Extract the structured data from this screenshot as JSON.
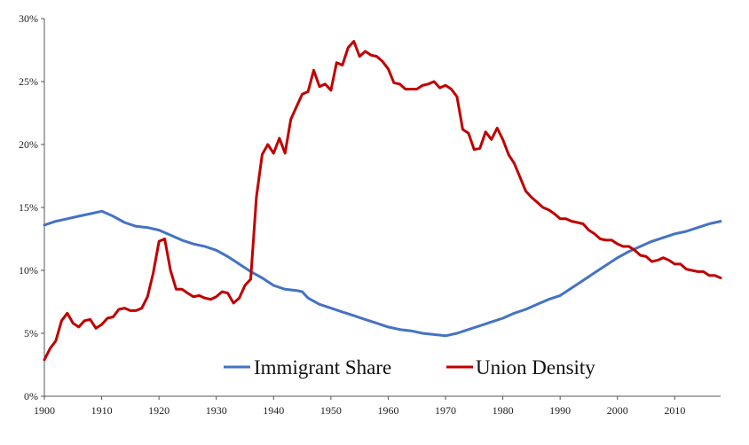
{
  "chart_data": {
    "type": "line",
    "title": "",
    "xlabel": "",
    "ylabel": "",
    "xlim": [
      1900,
      2018
    ],
    "ylim": [
      0,
      30
    ],
    "x_ticks": [
      "1900",
      "1910",
      "1920",
      "1930",
      "1940",
      "1950",
      "1960",
      "1970",
      "1980",
      "1990",
      "2000",
      "2010"
    ],
    "y_ticks": [
      "0%",
      "5%",
      "10%",
      "15%",
      "20%",
      "25%",
      "30%"
    ],
    "grid": false,
    "legend_position": "bottom-center",
    "series": [
      {
        "name": "Immigrant Share",
        "color": "#4472C4",
        "points": [
          [
            1900,
            13.6
          ],
          [
            1902,
            13.9
          ],
          [
            1904,
            14.1
          ],
          [
            1906,
            14.3
          ],
          [
            1908,
            14.5
          ],
          [
            1910,
            14.7
          ],
          [
            1912,
            14.3
          ],
          [
            1914,
            13.8
          ],
          [
            1916,
            13.5
          ],
          [
            1918,
            13.4
          ],
          [
            1920,
            13.2
          ],
          [
            1922,
            12.8
          ],
          [
            1924,
            12.4
          ],
          [
            1926,
            12.1
          ],
          [
            1928,
            11.9
          ],
          [
            1930,
            11.6
          ],
          [
            1932,
            11.1
          ],
          [
            1934,
            10.5
          ],
          [
            1936,
            9.9
          ],
          [
            1938,
            9.4
          ],
          [
            1940,
            8.8
          ],
          [
            1942,
            8.5
          ],
          [
            1944,
            8.4
          ],
          [
            1945,
            8.3
          ],
          [
            1946,
            7.8
          ],
          [
            1948,
            7.3
          ],
          [
            1950,
            7.0
          ],
          [
            1952,
            6.7
          ],
          [
            1954,
            6.4
          ],
          [
            1956,
            6.1
          ],
          [
            1958,
            5.8
          ],
          [
            1960,
            5.5
          ],
          [
            1962,
            5.3
          ],
          [
            1964,
            5.2
          ],
          [
            1966,
            5.0
          ],
          [
            1968,
            4.9
          ],
          [
            1970,
            4.8
          ],
          [
            1972,
            5.0
          ],
          [
            1974,
            5.3
          ],
          [
            1976,
            5.6
          ],
          [
            1978,
            5.9
          ],
          [
            1980,
            6.2
          ],
          [
            1982,
            6.6
          ],
          [
            1984,
            6.9
          ],
          [
            1986,
            7.3
          ],
          [
            1988,
            7.7
          ],
          [
            1990,
            8.0
          ],
          [
            1992,
            8.6
          ],
          [
            1994,
            9.2
          ],
          [
            1996,
            9.8
          ],
          [
            1998,
            10.4
          ],
          [
            2000,
            11.0
          ],
          [
            2002,
            11.5
          ],
          [
            2004,
            11.9
          ],
          [
            2006,
            12.3
          ],
          [
            2008,
            12.6
          ],
          [
            2010,
            12.9
          ],
          [
            2012,
            13.1
          ],
          [
            2014,
            13.4
          ],
          [
            2016,
            13.7
          ],
          [
            2018,
            13.9
          ]
        ]
      },
      {
        "name": "Union Density",
        "color": "#C00000",
        "points": [
          [
            1900,
            2.9
          ],
          [
            1901,
            3.8
          ],
          [
            1902,
            4.4
          ],
          [
            1903,
            6.0
          ],
          [
            1904,
            6.6
          ],
          [
            1905,
            5.8
          ],
          [
            1906,
            5.5
          ],
          [
            1907,
            6.0
          ],
          [
            1908,
            6.1
          ],
          [
            1909,
            5.4
          ],
          [
            1910,
            5.7
          ],
          [
            1911,
            6.2
          ],
          [
            1912,
            6.3
          ],
          [
            1913,
            6.9
          ],
          [
            1914,
            7.0
          ],
          [
            1915,
            6.8
          ],
          [
            1916,
            6.8
          ],
          [
            1917,
            7.0
          ],
          [
            1918,
            7.9
          ],
          [
            1919,
            9.8
          ],
          [
            1920,
            12.3
          ],
          [
            1921,
            12.5
          ],
          [
            1922,
            10.0
          ],
          [
            1923,
            8.5
          ],
          [
            1924,
            8.5
          ],
          [
            1925,
            8.2
          ],
          [
            1926,
            7.9
          ],
          [
            1927,
            8.0
          ],
          [
            1928,
            7.8
          ],
          [
            1929,
            7.7
          ],
          [
            1930,
            7.9
          ],
          [
            1931,
            8.3
          ],
          [
            1932,
            8.2
          ],
          [
            1933,
            7.4
          ],
          [
            1934,
            7.8
          ],
          [
            1935,
            8.8
          ],
          [
            1936,
            9.3
          ],
          [
            1937,
            15.8
          ],
          [
            1938,
            19.2
          ],
          [
            1939,
            20.0
          ],
          [
            1940,
            19.3
          ],
          [
            1941,
            20.5
          ],
          [
            1942,
            19.3
          ],
          [
            1943,
            22.0
          ],
          [
            1944,
            23.0
          ],
          [
            1945,
            24.0
          ],
          [
            1946,
            24.2
          ],
          [
            1947,
            25.9
          ],
          [
            1948,
            24.6
          ],
          [
            1949,
            24.8
          ],
          [
            1950,
            24.3
          ],
          [
            1951,
            26.5
          ],
          [
            1952,
            26.3
          ],
          [
            1953,
            27.7
          ],
          [
            1954,
            28.2
          ],
          [
            1955,
            27.0
          ],
          [
            1956,
            27.4
          ],
          [
            1957,
            27.1
          ],
          [
            1958,
            27.0
          ],
          [
            1959,
            26.6
          ],
          [
            1960,
            26.0
          ],
          [
            1961,
            24.9
          ],
          [
            1962,
            24.8
          ],
          [
            1963,
            24.4
          ],
          [
            1964,
            24.4
          ],
          [
            1965,
            24.4
          ],
          [
            1966,
            24.7
          ],
          [
            1967,
            24.8
          ],
          [
            1968,
            25.0
          ],
          [
            1969,
            24.5
          ],
          [
            1970,
            24.7
          ],
          [
            1971,
            24.4
          ],
          [
            1972,
            23.8
          ],
          [
            1973,
            21.2
          ],
          [
            1974,
            20.9
          ],
          [
            1975,
            19.6
          ],
          [
            1976,
            19.7
          ],
          [
            1977,
            21.0
          ],
          [
            1978,
            20.4
          ],
          [
            1979,
            21.3
          ],
          [
            1980,
            20.4
          ],
          [
            1981,
            19.2
          ],
          [
            1982,
            18.5
          ],
          [
            1983,
            17.4
          ],
          [
            1984,
            16.3
          ],
          [
            1985,
            15.8
          ],
          [
            1986,
            15.4
          ],
          [
            1987,
            15.0
          ],
          [
            1988,
            14.8
          ],
          [
            1989,
            14.5
          ],
          [
            1990,
            14.1
          ],
          [
            1991,
            14.1
          ],
          [
            1992,
            13.9
          ],
          [
            1993,
            13.8
          ],
          [
            1994,
            13.7
          ],
          [
            1995,
            13.2
          ],
          [
            1996,
            12.9
          ],
          [
            1997,
            12.5
          ],
          [
            1998,
            12.4
          ],
          [
            1999,
            12.4
          ],
          [
            2000,
            12.1
          ],
          [
            2001,
            11.9
          ],
          [
            2002,
            11.9
          ],
          [
            2003,
            11.6
          ],
          [
            2004,
            11.2
          ],
          [
            2005,
            11.1
          ],
          [
            2006,
            10.7
          ],
          [
            2007,
            10.8
          ],
          [
            2008,
            11.0
          ],
          [
            2009,
            10.8
          ],
          [
            2010,
            10.5
          ],
          [
            2011,
            10.5
          ],
          [
            2012,
            10.1
          ],
          [
            2013,
            10.0
          ],
          [
            2014,
            9.9
          ],
          [
            2015,
            9.9
          ],
          [
            2016,
            9.6
          ],
          [
            2017,
            9.6
          ],
          [
            2018,
            9.4
          ]
        ]
      }
    ]
  }
}
